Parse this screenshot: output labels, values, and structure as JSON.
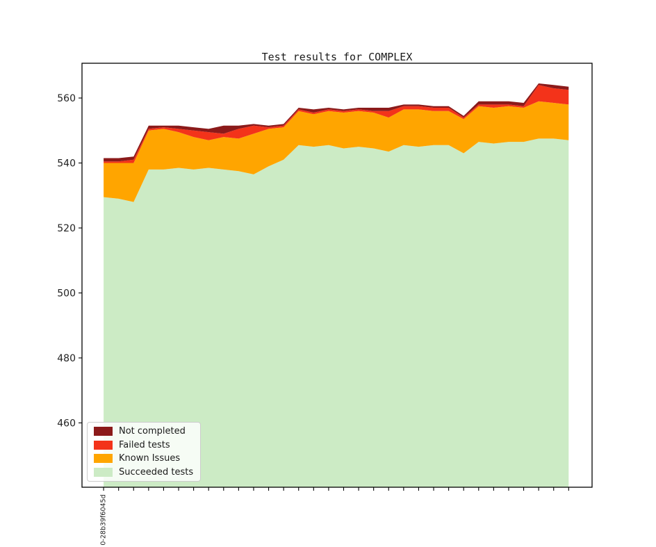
{
  "chart_data": {
    "type": "area",
    "stacked": true,
    "title": "Test results for COMPLEX",
    "xlabel": "",
    "ylabel": "",
    "num_points": 32,
    "x": [
      0,
      1,
      2,
      3,
      4,
      5,
      6,
      7,
      8,
      9,
      10,
      11,
      12,
      13,
      14,
      15,
      16,
      17,
      18,
      19,
      20,
      21,
      22,
      23,
      24,
      25,
      26,
      27,
      28,
      29,
      30,
      31
    ],
    "first_xtick_label": "0-28b39f6045d",
    "xtick_note": "only the first of 32 ticks is labeled",
    "stack_order": "bottom_to_top",
    "series": [
      {
        "name": "Succeeded tests",
        "color": "#CCEBC5",
        "values": [
          529.5,
          529,
          528,
          538,
          538,
          538.5,
          538,
          538.5,
          538,
          537.5,
          536.5,
          539,
          541,
          545.5,
          545,
          545.5,
          544.5,
          545,
          544.5,
          543.5,
          545.5,
          545,
          545.5,
          545.5,
          543,
          546.5,
          546,
          546.5,
          546.5,
          547.5,
          547.5,
          547
        ]
      },
      {
        "name": "Known Issues",
        "color": "#FFA500",
        "values": [
          10.5,
          11,
          12,
          12,
          12.5,
          11,
          10,
          8.5,
          10,
          10,
          12.5,
          11.5,
          10,
          10.5,
          10,
          10.5,
          11,
          11,
          11,
          10.5,
          11,
          11.5,
          10.5,
          10.5,
          10.5,
          11,
          11,
          11,
          10.5,
          11.5,
          11,
          11
        ]
      },
      {
        "name": "Failed tests",
        "color": "#F3331A",
        "values": [
          0.5,
          0.5,
          1,
          0.5,
          0.5,
          1,
          2,
          2.5,
          1,
          3,
          2.5,
          0.5,
          0.5,
          0.5,
          0.5,
          0.5,
          0.5,
          0.5,
          0.5,
          2,
          1,
          1,
          1,
          1,
          0.5,
          0.5,
          1,
          0.5,
          0.5,
          5,
          4.5,
          4.5
        ]
      },
      {
        "name": "Not completed",
        "color": "#8B1A1A",
        "values": [
          1,
          1,
          1,
          1,
          0.5,
          1,
          1,
          1,
          2.5,
          1,
          0.5,
          0.5,
          0.5,
          0.5,
          1,
          0.5,
          0.5,
          0.5,
          1,
          1,
          0.5,
          0.5,
          0.5,
          0.5,
          0.5,
          1,
          1,
          1,
          1,
          0.5,
          1,
          1
        ]
      }
    ],
    "totals": [
      541.5,
      541.5,
      542,
      551.5,
      551.5,
      551.5,
      551,
      550.5,
      551.5,
      551.5,
      552,
      551.5,
      552,
      557,
      556.5,
      557,
      556.5,
      557,
      557,
      557,
      558,
      558,
      557.5,
      557.5,
      554.5,
      559,
      559,
      559,
      558.5,
      564.5,
      564,
      563.5
    ],
    "yticks": [
      460,
      480,
      500,
      520,
      540,
      560
    ],
    "ylim": [
      440.2,
      570.7
    ],
    "xlim": [
      -1.44,
      32.56
    ],
    "grid": false,
    "legend": {
      "position": "lower left",
      "entries": [
        "Not completed",
        "Failed tests",
        "Known Issues",
        "Succeeded tests"
      ]
    }
  },
  "colors": {
    "axis": "#000000",
    "tick_label": "#222222",
    "background": "#ffffff"
  }
}
